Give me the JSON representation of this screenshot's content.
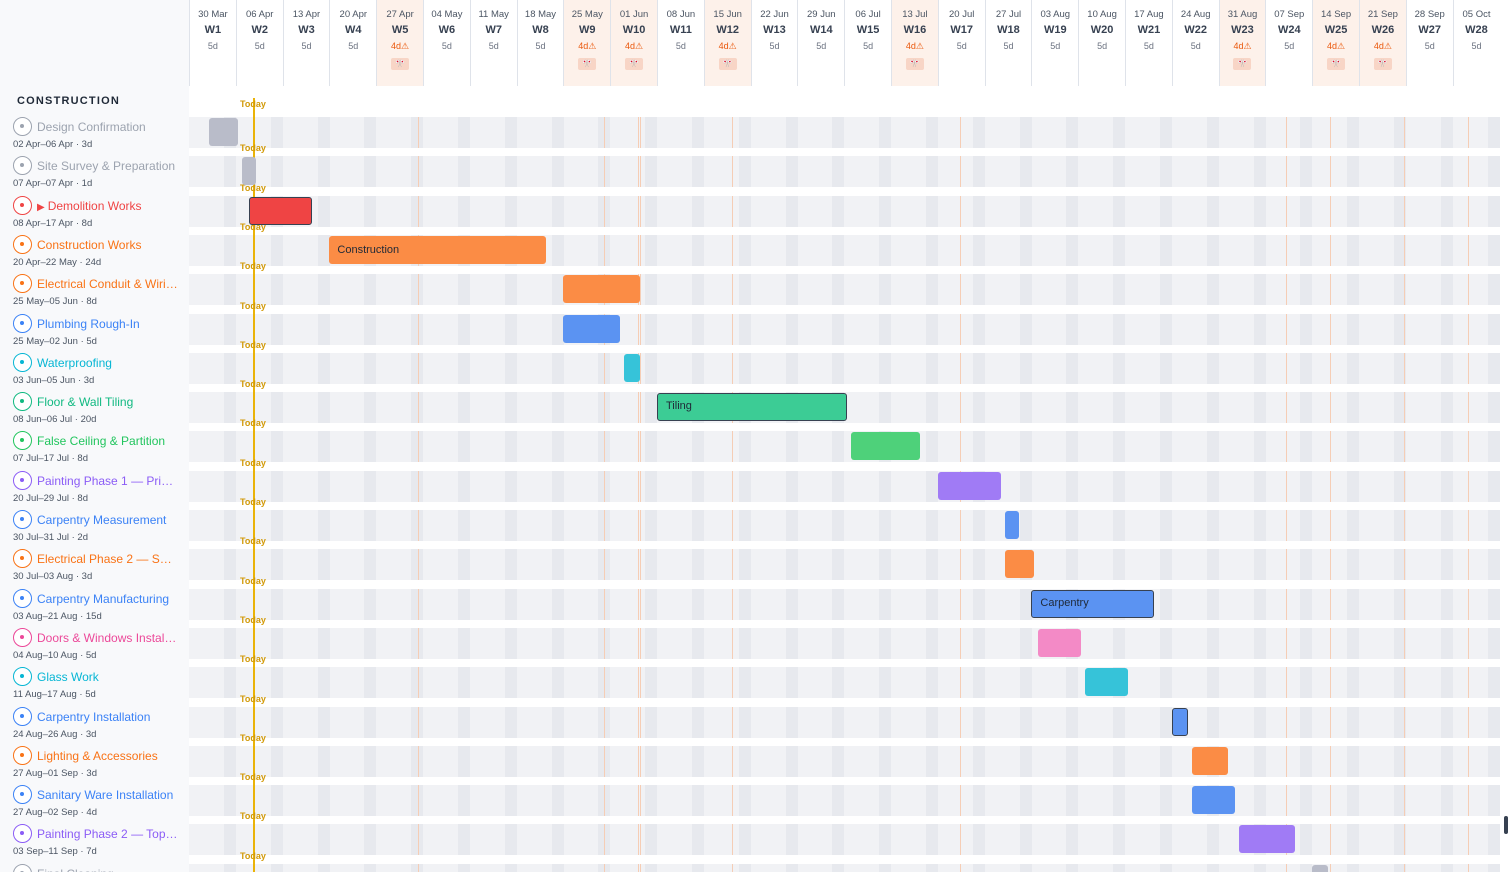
{
  "section": {
    "title": "CONSTRUCTION"
  },
  "today_label": "Today",
  "holiday_icon": "🎌",
  "colors": {
    "gray": "#9ca3af",
    "red": "#ef4444",
    "orange": "#f97316",
    "blue": "#3b82f6",
    "cyan": "#06b6d4",
    "emerald": "#10b981",
    "green": "#22c55e",
    "purple": "#8b5cf6",
    "pink": "#ec4899",
    "today": "#eab308",
    "holiday_week": "#fdf1ea"
  },
  "weeks": [
    {
      "date": "30 Mar",
      "label": "W1",
      "days": "5d",
      "holiday": false
    },
    {
      "date": "06 Apr",
      "label": "W2",
      "days": "5d",
      "holiday": false
    },
    {
      "date": "13 Apr",
      "label": "W3",
      "days": "5d",
      "holiday": false
    },
    {
      "date": "20 Apr",
      "label": "W4",
      "days": "5d",
      "holiday": false
    },
    {
      "date": "27 Apr",
      "label": "W5",
      "days": "4d⚠",
      "holiday": true
    },
    {
      "date": "04 May",
      "label": "W6",
      "days": "5d",
      "holiday": false
    },
    {
      "date": "11 May",
      "label": "W7",
      "days": "5d",
      "holiday": false
    },
    {
      "date": "18 May",
      "label": "W8",
      "days": "5d",
      "holiday": false
    },
    {
      "date": "25 May",
      "label": "W9",
      "days": "4d⚠",
      "holiday": true
    },
    {
      "date": "01 Jun",
      "label": "W10",
      "days": "4d⚠",
      "holiday": true
    },
    {
      "date": "08 Jun",
      "label": "W11",
      "days": "5d",
      "holiday": false
    },
    {
      "date": "15 Jun",
      "label": "W12",
      "days": "4d⚠",
      "holiday": true
    },
    {
      "date": "22 Jun",
      "label": "W13",
      "days": "5d",
      "holiday": false
    },
    {
      "date": "29 Jun",
      "label": "W14",
      "days": "5d",
      "holiday": false
    },
    {
      "date": "06 Jul",
      "label": "W15",
      "days": "5d",
      "holiday": false
    },
    {
      "date": "13 Jul",
      "label": "W16",
      "days": "4d⚠",
      "holiday": true
    },
    {
      "date": "20 Jul",
      "label": "W17",
      "days": "5d",
      "holiday": false
    },
    {
      "date": "27 Jul",
      "label": "W18",
      "days": "5d",
      "holiday": false
    },
    {
      "date": "03 Aug",
      "label": "W19",
      "days": "5d",
      "holiday": false
    },
    {
      "date": "10 Aug",
      "label": "W20",
      "days": "5d",
      "holiday": false
    },
    {
      "date": "17 Aug",
      "label": "W21",
      "days": "5d",
      "holiday": false
    },
    {
      "date": "24 Aug",
      "label": "W22",
      "days": "5d",
      "holiday": false
    },
    {
      "date": "31 Aug",
      "label": "W23",
      "days": "4d⚠",
      "holiday": true
    },
    {
      "date": "07 Sep",
      "label": "W24",
      "days": "5d",
      "holiday": false
    },
    {
      "date": "14 Sep",
      "label": "W25",
      "days": "4d⚠",
      "holiday": true
    },
    {
      "date": "21 Sep",
      "label": "W26",
      "days": "4d⚠",
      "holiday": true
    },
    {
      "date": "28 Sep",
      "label": "W27",
      "days": "5d",
      "holiday": false
    },
    {
      "date": "05 Oct",
      "label": "W28",
      "days": "5d",
      "holiday": false
    }
  ],
  "tasks": [
    {
      "name": "Design Confirmation",
      "sub": "02 Apr–06 Apr · 3d",
      "color": "gray",
      "start": "2026-04-02",
      "end": "2026-04-06",
      "bar_label": "",
      "critical": false,
      "playing": false
    },
    {
      "name": "Site Survey & Preparation",
      "sub": "07 Apr–07 Apr · 1d",
      "color": "gray",
      "start": "2026-04-07",
      "end": "2026-04-07",
      "bar_label": "",
      "critical": false,
      "playing": false
    },
    {
      "name": "Demolition Works",
      "sub": "08 Apr–17 Apr · 8d",
      "color": "red",
      "start": "2026-04-08",
      "end": "2026-04-17",
      "bar_label": "",
      "critical": true,
      "playing": true
    },
    {
      "name": "Construction Works",
      "sub": "20 Apr–22 May · 24d",
      "color": "orange",
      "start": "2026-04-20",
      "end": "2026-05-22",
      "bar_label": "Construction",
      "critical": false,
      "playing": false
    },
    {
      "name": "Electrical Conduit & Wiring",
      "sub": "25 May–05 Jun · 8d",
      "color": "orange",
      "start": "2026-05-25",
      "end": "2026-06-05",
      "bar_label": "",
      "critical": false,
      "playing": false
    },
    {
      "name": "Plumbing Rough-In",
      "sub": "25 May–02 Jun · 5d",
      "color": "blue",
      "start": "2026-05-25",
      "end": "2026-06-02",
      "bar_label": "",
      "critical": false,
      "playing": false
    },
    {
      "name": "Waterproofing",
      "sub": "03 Jun–05 Jun · 3d",
      "color": "cyan",
      "start": "2026-06-03",
      "end": "2026-06-05",
      "bar_label": "",
      "critical": false,
      "playing": false
    },
    {
      "name": "Floor & Wall Tiling",
      "sub": "08 Jun–06 Jul · 20d",
      "color": "emerald",
      "start": "2026-06-08",
      "end": "2026-07-06",
      "bar_label": "Tiling",
      "critical": true,
      "playing": false
    },
    {
      "name": "False Ceiling & Partition",
      "sub": "07 Jul–17 Jul · 8d",
      "color": "green",
      "start": "2026-07-07",
      "end": "2026-07-17",
      "bar_label": "",
      "critical": false,
      "playing": false
    },
    {
      "name": "Painting Phase 1 — Primer",
      "sub": "20 Jul–29 Jul · 8d",
      "color": "purple",
      "start": "2026-07-20",
      "end": "2026-07-29",
      "bar_label": "",
      "critical": false,
      "playing": false
    },
    {
      "name": "Carpentry Measurement",
      "sub": "30 Jul–31 Jul · 2d",
      "color": "blue",
      "start": "2026-07-30",
      "end": "2026-07-31",
      "bar_label": "",
      "critical": false,
      "playing": false
    },
    {
      "name": "Electrical Phase 2 — Switches",
      "sub": "30 Jul–03 Aug · 3d",
      "color": "orange",
      "start": "2026-07-30",
      "end": "2026-08-03",
      "bar_label": "",
      "critical": false,
      "playing": false
    },
    {
      "name": "Carpentry Manufacturing",
      "sub": "03 Aug–21 Aug · 15d",
      "color": "blue",
      "start": "2026-08-03",
      "end": "2026-08-21",
      "bar_label": "Carpentry",
      "critical": true,
      "playing": false
    },
    {
      "name": "Doors & Windows Installation",
      "sub": "04 Aug–10 Aug · 5d",
      "color": "pink",
      "start": "2026-08-04",
      "end": "2026-08-10",
      "bar_label": "",
      "critical": false,
      "playing": false
    },
    {
      "name": "Glass Work",
      "sub": "11 Aug–17 Aug · 5d",
      "color": "cyan",
      "start": "2026-08-11",
      "end": "2026-08-17",
      "bar_label": "",
      "critical": false,
      "playing": false
    },
    {
      "name": "Carpentry Installation",
      "sub": "24 Aug–26 Aug · 3d",
      "color": "blue",
      "start": "2026-08-24",
      "end": "2026-08-26",
      "bar_label": "",
      "critical": true,
      "playing": false
    },
    {
      "name": "Lighting & Accessories",
      "sub": "27 Aug–01 Sep · 3d",
      "color": "orange",
      "start": "2026-08-27",
      "end": "2026-09-01",
      "bar_label": "",
      "critical": false,
      "playing": false
    },
    {
      "name": "Sanitary Ware Installation",
      "sub": "27 Aug–02 Sep · 4d",
      "color": "blue",
      "start": "2026-08-27",
      "end": "2026-09-02",
      "bar_label": "",
      "critical": false,
      "playing": false
    },
    {
      "name": "Painting Phase 2 — Topcoat",
      "sub": "03 Sep–11 Sep · 7d",
      "color": "purple",
      "start": "2026-09-03",
      "end": "2026-09-11",
      "bar_label": "",
      "critical": false,
      "playing": false
    },
    {
      "name": "Final Cleaning",
      "sub": "",
      "color": "gray",
      "start": "2026-09-14",
      "end": "2026-09-16",
      "bar_label": "",
      "critical": false,
      "playing": false
    }
  ]
}
